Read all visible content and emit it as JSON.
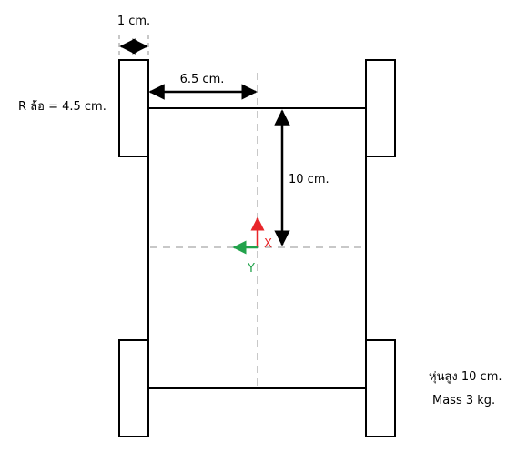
{
  "labels": {
    "wheel_width": "1 cm.",
    "wheel_radius": "R ล้อ = 4.5 cm.",
    "half_track": "6.5 cm.",
    "half_wheelbase": "10 cm.",
    "robot_height": "หุ่นสูง 10 cm.",
    "mass": "Mass 3 kg."
  },
  "axes": {
    "x_label": "X",
    "y_label": "Y",
    "x_color": "#e8262a",
    "y_color": "#22a24b"
  },
  "colors": {
    "line": "#000000",
    "centerline": "#c8c8c8"
  }
}
